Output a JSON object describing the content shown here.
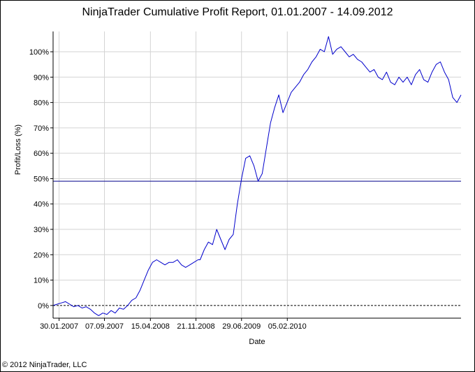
{
  "chart_data": {
    "type": "line",
    "title": "NinjaTrader Cumulative Profit Report, 01.01.2007  - 14.09.2012",
    "xlabel": "Date",
    "ylabel": "Profit/Loss (%)",
    "ylim": [
      -5,
      108
    ],
    "yticks": [
      0,
      10,
      20,
      30,
      40,
      50,
      60,
      70,
      80,
      90,
      100
    ],
    "ytick_labels": [
      "0%",
      "10%",
      "20%",
      "30%",
      "40%",
      "50%",
      "60%",
      "70%",
      "80%",
      "90%",
      "100%"
    ],
    "xlim": [
      0,
      1970
    ],
    "xticks": [
      29,
      248,
      470,
      690,
      910,
      1131
    ],
    "xtick_labels": [
      "30.01.2007",
      "07.09.2007",
      "15.04.2008",
      "21.11.2008",
      "29.06.2009",
      "05.02.2010"
    ],
    "grid": true,
    "reference_lines": [
      {
        "y": 49,
        "color": "#00008B",
        "style": "solid"
      },
      {
        "y": 0,
        "color": "#000000",
        "style": "dashed"
      }
    ],
    "series": [
      {
        "color": "#0000CC",
        "x": [
          0,
          20,
          40,
          60,
          80,
          100,
          120,
          140,
          160,
          180,
          200,
          220,
          240,
          260,
          280,
          300,
          320,
          340,
          360,
          380,
          400,
          420,
          440,
          460,
          480,
          500,
          520,
          540,
          560,
          580,
          600,
          620,
          640,
          660,
          680,
          700,
          710,
          730,
          750,
          770,
          790,
          810,
          830,
          850,
          870,
          890,
          910,
          930,
          950,
          970,
          990,
          1010,
          1030,
          1050,
          1070,
          1090,
          1110,
          1130,
          1150,
          1170,
          1190,
          1210,
          1230,
          1250,
          1270,
          1290,
          1310,
          1330,
          1350,
          1370,
          1390,
          1410,
          1430,
          1450,
          1470,
          1490,
          1510,
          1530,
          1550,
          1570,
          1590,
          1610,
          1630,
          1650,
          1670,
          1690,
          1710,
          1730,
          1750,
          1770,
          1790,
          1810,
          1830,
          1850,
          1870,
          1890,
          1910,
          1930,
          1950,
          1970
        ],
        "y": [
          0,
          0.5,
          1,
          1.5,
          0.5,
          -0.5,
          0,
          -1,
          -0.5,
          -1.5,
          -3,
          -4,
          -3,
          -3.5,
          -2,
          -3,
          -1,
          -1.5,
          0,
          2,
          3,
          6,
          10,
          14,
          17,
          18,
          17,
          16,
          17,
          17,
          18,
          16,
          15,
          16,
          17,
          18,
          18,
          22,
          25,
          24,
          30,
          26,
          22,
          26,
          28,
          40,
          50,
          58,
          59,
          55,
          49,
          52,
          62,
          72,
          78,
          83,
          76,
          80,
          84,
          86,
          88,
          91,
          93,
          96,
          98,
          101,
          100,
          106,
          99,
          101,
          102,
          100,
          98,
          99,
          97,
          96,
          94,
          92,
          93,
          90,
          89,
          92,
          88,
          87,
          90,
          88,
          90,
          87,
          91,
          93,
          89,
          88,
          92,
          95,
          96,
          92,
          89,
          82,
          80,
          83
        ]
      }
    ]
  },
  "copyright": "© 2012 NinjaTrader, LLC"
}
